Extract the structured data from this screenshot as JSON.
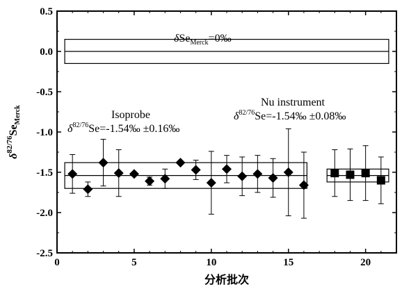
{
  "chart_data": {
    "type": "scatter",
    "xlabel": "分析批次",
    "ylabel_main": "δ",
    "ylabel_sup": "82/76",
    "ylabel_base": "Se",
    "ylabel_sub": "Merck",
    "xlim": [
      0,
      22
    ],
    "ylim": [
      -2.5,
      0.5
    ],
    "xticks": [
      0,
      5,
      10,
      15,
      20
    ],
    "yticks": [
      0.5,
      0.0,
      -0.5,
      -1.0,
      -1.5,
      -2.0,
      -2.5
    ],
    "ytick_labels": [
      "0.5",
      "0.0",
      "-0.5",
      "-1.0",
      "-1.5",
      "-2.0",
      "-2.5"
    ],
    "series": [
      {
        "name": "Isoprobe",
        "marker": "diamond",
        "x": [
          1,
          2,
          3,
          4,
          5,
          6,
          7,
          8,
          9,
          10,
          11,
          12,
          13,
          14,
          15,
          16
        ],
        "y": [
          -1.52,
          -1.71,
          -1.38,
          -1.51,
          -1.52,
          -1.61,
          -1.58,
          -1.38,
          -1.47,
          -1.63,
          -1.46,
          -1.55,
          -1.52,
          -1.57,
          -1.5,
          -1.66
        ],
        "err": [
          0.24,
          0.09,
          0.29,
          0.29,
          0.0,
          0.05,
          0.12,
          0.0,
          0.12,
          0.39,
          0.17,
          0.24,
          0.23,
          0.24,
          0.54,
          0.41
        ]
      },
      {
        "name": "Nu instrument",
        "marker": "square",
        "x": [
          18,
          19,
          20,
          21
        ],
        "y": [
          -1.51,
          -1.53,
          -1.51,
          -1.6
        ],
        "err": [
          0.29,
          0.32,
          0.34,
          0.29
        ]
      }
    ],
    "bands": [
      {
        "x_range": [
          0.5,
          16.2
        ],
        "y_range": [
          -1.7,
          -1.38
        ],
        "center": -1.54
      },
      {
        "x_range": [
          17.5,
          21.5
        ],
        "y_range": [
          -1.62,
          -1.46
        ],
        "center": -1.54
      },
      {
        "x_range": [
          0.5,
          21.5
        ],
        "y_range": [
          -0.15,
          0.15
        ],
        "center": 0.0
      }
    ],
    "annotations": {
      "merck_delta": "δ",
      "merck_se": "Se",
      "merck_sub": "Merck",
      "merck_value": "=0‰",
      "isoprobe_title": "Isoprobe",
      "isoprobe_delta": "δ",
      "isoprobe_sup": "82/76",
      "isoprobe_value": "Se=-1.54‰ ±0.16‰",
      "nu_title": "Nu instrument",
      "nu_delta": "δ",
      "nu_sup": "82/76",
      "nu_value": "Se=-1.54‰ ±0.08‰"
    }
  }
}
